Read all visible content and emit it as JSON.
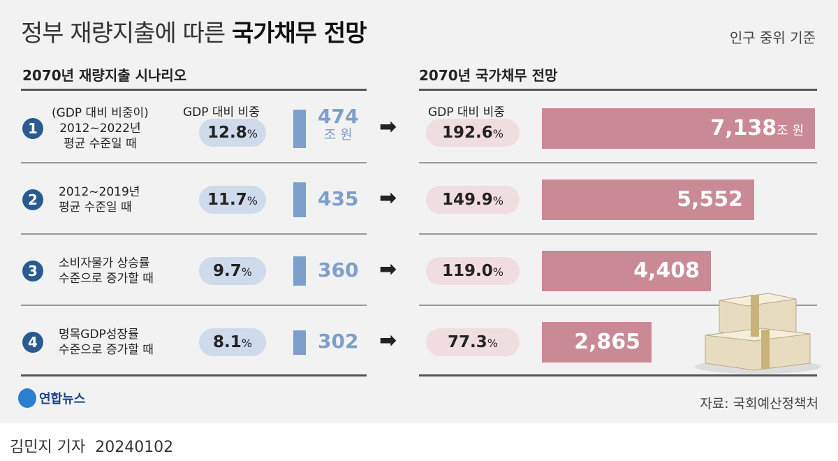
{
  "header": {
    "title_light": "정부 재량지출에 따른",
    "title_bold": "국가채무 전망",
    "basis": "인구 중위 기준"
  },
  "left_heading": "2070년 재량지출 시나리오",
  "right_heading": "2070년 국가채무 전망",
  "col_label_left": "GDP 대비 비중",
  "col_label_right": "GDP 대비 비중",
  "colors": {
    "spend_bar": "#7d9fcb",
    "debt_bar": "#c98995",
    "badge": "#2a5a8f"
  },
  "chart_data": {
    "type": "bar",
    "categories": [
      "1",
      "2",
      "3",
      "4"
    ],
    "scenarios": [
      {
        "num": "1",
        "desc": [
          "(GDP 대비 비중이)",
          "2012~2022년",
          "평균 수준일 때"
        ],
        "spend_gdp_pct": "12.8",
        "spend": "474",
        "spend_value": 474,
        "debt_gdp_pct": "192.6",
        "debt": "7,138",
        "debt_value": 7138
      },
      {
        "num": "2",
        "desc": [
          "2012~2019년",
          "평균 수준일 때"
        ],
        "spend_gdp_pct": "11.7",
        "spend": "435",
        "spend_value": 435,
        "debt_gdp_pct": "149.9",
        "debt": "5,552",
        "debt_value": 5552
      },
      {
        "num": "3",
        "desc": [
          "소비자물가 상승률",
          "수준으로 증가할 때"
        ],
        "spend_gdp_pct": "9.7",
        "spend": "360",
        "spend_value": 360,
        "debt_gdp_pct": "119.0",
        "debt": "4,408",
        "debt_value": 4408
      },
      {
        "num": "4",
        "desc": [
          "명목GDP성장률",
          "수준으로 증가할 때"
        ],
        "spend_gdp_pct": "8.1",
        "spend": "302",
        "spend_value": 302,
        "debt_gdp_pct": "77.3",
        "debt": "2,865",
        "debt_value": 2865
      }
    ],
    "unit": "조 원",
    "pct_unit": "%"
  },
  "footer": {
    "logo": "연합뉴스",
    "source": "자료: 국회예산정책처",
    "byline": "김민지 기자",
    "date": "20240102"
  }
}
